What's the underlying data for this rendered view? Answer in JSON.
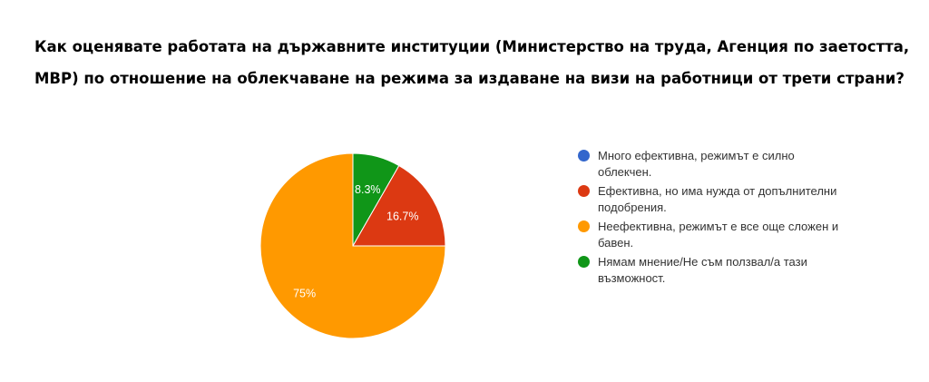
{
  "chart_data": {
    "type": "pie",
    "title": "Как оценявате работата на държавните институции (Министерство на труда, Агенция по заетостта, МВР) по отношение на облекчаване на режима за издаване на визи на работници от трети страни?",
    "categories": [
      "Много ефективна, режимът е силно облекчен.",
      "Ефективна, но има нужда от допълнителни подобрения.",
      "Неефективна, режимът е все още сложен и бавен.",
      "Нямам мнение/Не съм ползвал/а тази възможност."
    ],
    "values": [
      0,
      16.7,
      75,
      8.3
    ],
    "labels": [
      "",
      "16.7%",
      "75%",
      "8.3%"
    ],
    "colors": [
      "#3366cc",
      "#dc3912",
      "#ff9900",
      "#109618"
    ],
    "legend_position": "right"
  }
}
